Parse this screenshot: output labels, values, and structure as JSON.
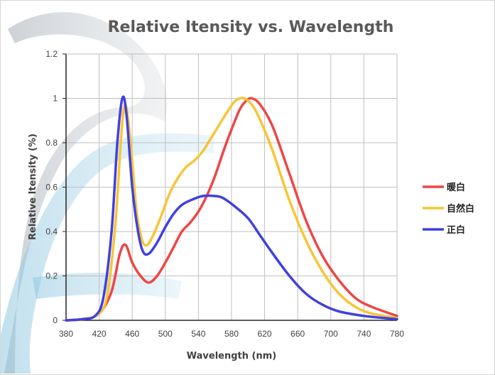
{
  "chart_data": {
    "type": "line",
    "title": "Relative Itensity vs. Wavelength",
    "xlabel": "Wavelength (nm)",
    "ylabel": "Relative Itensity (%)",
    "xlim": [
      380,
      780
    ],
    "ylim": [
      0,
      1.2
    ],
    "x_ticks": [
      380,
      420,
      460,
      500,
      540,
      580,
      620,
      660,
      700,
      740,
      780
    ],
    "x_tick_labels": [
      "380",
      "420",
      "460",
      "500",
      "540",
      "580",
      "620",
      "660",
      "700",
      "740",
      "780"
    ],
    "y_ticks": [
      0,
      0.2,
      0.4,
      0.6,
      0.8,
      1,
      1.2
    ],
    "y_tick_labels": [
      "0",
      "0.2",
      "0.4",
      "0.6",
      "0.8",
      "1",
      "1.2"
    ],
    "grid": true,
    "legend_position": "right",
    "series": [
      {
        "name": "暖白",
        "color": "#f04545",
        "points": [
          [
            380,
            0
          ],
          [
            400,
            0.005
          ],
          [
            420,
            0.03
          ],
          [
            435,
            0.13
          ],
          [
            445,
            0.3
          ],
          [
            452,
            0.34
          ],
          [
            460,
            0.26
          ],
          [
            470,
            0.2
          ],
          [
            480,
            0.17
          ],
          [
            490,
            0.2
          ],
          [
            500,
            0.26
          ],
          [
            510,
            0.33
          ],
          [
            520,
            0.4
          ],
          [
            530,
            0.44
          ],
          [
            540,
            0.49
          ],
          [
            550,
            0.56
          ],
          [
            560,
            0.65
          ],
          [
            570,
            0.76
          ],
          [
            580,
            0.86
          ],
          [
            590,
            0.95
          ],
          [
            598,
            0.99
          ],
          [
            605,
            1.0
          ],
          [
            615,
            0.97
          ],
          [
            630,
            0.87
          ],
          [
            650,
            0.66
          ],
          [
            670,
            0.45
          ],
          [
            690,
            0.29
          ],
          [
            710,
            0.18
          ],
          [
            730,
            0.1
          ],
          [
            750,
            0.06
          ],
          [
            780,
            0.02
          ]
        ]
      },
      {
        "name": "自然白",
        "color": "#f7c535",
        "points": [
          [
            380,
            0
          ],
          [
            400,
            0.005
          ],
          [
            420,
            0.03
          ],
          [
            430,
            0.12
          ],
          [
            440,
            0.45
          ],
          [
            447,
            0.85
          ],
          [
            452,
            0.97
          ],
          [
            458,
            0.8
          ],
          [
            465,
            0.5
          ],
          [
            472,
            0.36
          ],
          [
            478,
            0.34
          ],
          [
            485,
            0.38
          ],
          [
            495,
            0.47
          ],
          [
            505,
            0.57
          ],
          [
            515,
            0.64
          ],
          [
            525,
            0.69
          ],
          [
            535,
            0.72
          ],
          [
            545,
            0.76
          ],
          [
            555,
            0.82
          ],
          [
            565,
            0.88
          ],
          [
            575,
            0.94
          ],
          [
            585,
            0.99
          ],
          [
            595,
            1.0
          ],
          [
            605,
            0.97
          ],
          [
            615,
            0.9
          ],
          [
            630,
            0.76
          ],
          [
            650,
            0.54
          ],
          [
            670,
            0.36
          ],
          [
            690,
            0.22
          ],
          [
            710,
            0.12
          ],
          [
            730,
            0.06
          ],
          [
            750,
            0.03
          ],
          [
            780,
            0.01
          ]
        ]
      },
      {
        "name": "正白",
        "color": "#4040e0",
        "points": [
          [
            380,
            0
          ],
          [
            400,
            0.005
          ],
          [
            415,
            0.02
          ],
          [
            425,
            0.1
          ],
          [
            435,
            0.4
          ],
          [
            442,
            0.8
          ],
          [
            448,
            1.0
          ],
          [
            453,
            0.93
          ],
          [
            460,
            0.6
          ],
          [
            467,
            0.4
          ],
          [
            473,
            0.31
          ],
          [
            480,
            0.3
          ],
          [
            490,
            0.35
          ],
          [
            500,
            0.42
          ],
          [
            510,
            0.48
          ],
          [
            520,
            0.52
          ],
          [
            530,
            0.54
          ],
          [
            545,
            0.56
          ],
          [
            560,
            0.56
          ],
          [
            570,
            0.55
          ],
          [
            585,
            0.51
          ],
          [
            600,
            0.46
          ],
          [
            615,
            0.38
          ],
          [
            630,
            0.3
          ],
          [
            650,
            0.2
          ],
          [
            670,
            0.12
          ],
          [
            690,
            0.07
          ],
          [
            710,
            0.04
          ],
          [
            740,
            0.02
          ],
          [
            780,
            0.005
          ]
        ]
      }
    ]
  }
}
